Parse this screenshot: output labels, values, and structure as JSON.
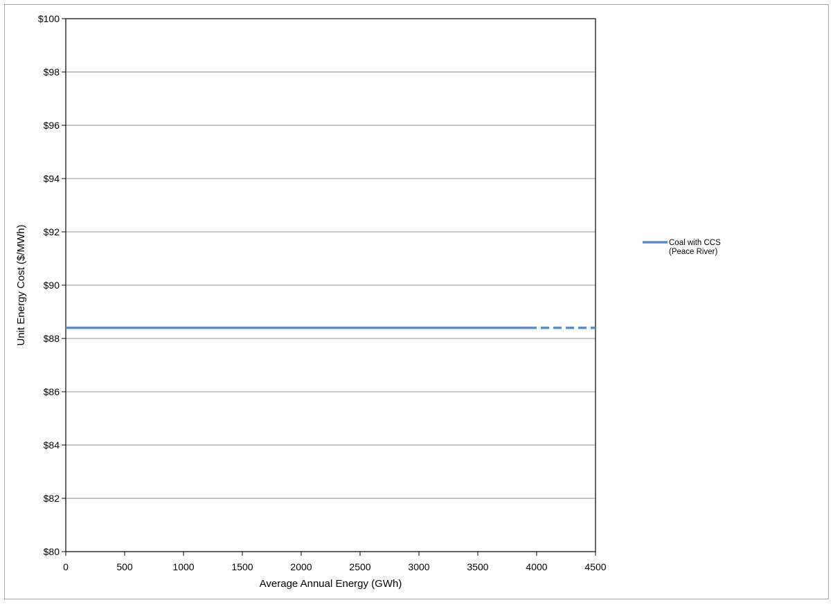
{
  "chart_data": {
    "type": "line",
    "title": "",
    "xlabel": "Average Annual Energy (GWh)",
    "ylabel": "Unit Energy Cost ($/MWh)",
    "xlim": [
      0,
      4500
    ],
    "ylim": [
      80,
      100
    ],
    "x_ticks": [
      0,
      500,
      1000,
      1500,
      2000,
      2500,
      3000,
      3500,
      4000,
      4500
    ],
    "y_ticks": [
      80,
      82,
      84,
      86,
      88,
      90,
      92,
      94,
      96,
      98,
      100
    ],
    "y_tick_labels": [
      "$80",
      "$82",
      "$84",
      "$86",
      "$88",
      "$90",
      "$92",
      "$94",
      "$96",
      "$98",
      "$100"
    ],
    "grid": "horizontal",
    "legend_position": "right",
    "series": [
      {
        "name": "Coal with CCS (Peace River)",
        "legend_lines": [
          "Coal with CCS",
          "(Peace River)"
        ],
        "color": "#5B8BD0",
        "segments": [
          {
            "style": "solid",
            "points": [
              [
                0,
                88.4
              ],
              [
                3930,
                88.4
              ]
            ]
          },
          {
            "style": "dashed",
            "points": [
              [
                3930,
                88.4
              ],
              [
                4500,
                88.4
              ]
            ]
          }
        ]
      }
    ]
  }
}
